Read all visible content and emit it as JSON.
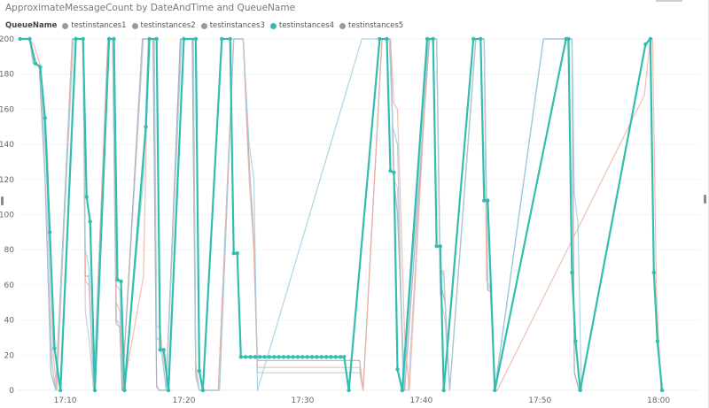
{
  "chart_data": {
    "type": "line",
    "title": "ApproximateMessageCount by DateAndTime and QueueName",
    "xlabel": "",
    "ylabel": "",
    "legend_title": "QueueName",
    "legend_position": "top-left",
    "grid": true,
    "ylim": [
      0,
      200
    ],
    "y_ticks": [
      "0",
      "20",
      "40",
      "60",
      "80",
      "100",
      "120",
      "140",
      "160",
      "180",
      "200"
    ],
    "x_range_minutes": [
      1026,
      1083.5
    ],
    "x_ticks": [
      {
        "label": "17:10",
        "minute": 1030
      },
      {
        "label": "17:20",
        "minute": 1040
      },
      {
        "label": "17:30",
        "minute": 1050
      },
      {
        "label": "17:40",
        "minute": 1060
      },
      {
        "label": "17:50",
        "minute": 1070
      },
      {
        "label": "18:00",
        "minute": 1080
      }
    ],
    "series": [
      {
        "name": "testinstances1",
        "color": "#c7c2dc",
        "points": [
          [
            1026.2,
            200
          ],
          [
            1027.0,
            200
          ],
          [
            1027.4,
            186
          ],
          [
            1027.9,
            185
          ],
          [
            1028.4,
            130
          ],
          [
            1028.9,
            15
          ],
          [
            1029.2,
            0
          ],
          [
            1030.6,
            200
          ],
          [
            1031.5,
            200
          ],
          [
            1031.7,
            45
          ],
          [
            1032.0,
            30
          ],
          [
            1032.4,
            0
          ],
          [
            1033.6,
            200
          ],
          [
            1034.0,
            200
          ],
          [
            1034.3,
            40
          ],
          [
            1034.6,
            38
          ],
          [
            1034.8,
            0
          ],
          [
            1036.6,
            200
          ],
          [
            1037.4,
            200
          ],
          [
            1037.7,
            3
          ],
          [
            1037.9,
            0
          ],
          [
            1038.5,
            0
          ],
          [
            1039.7,
            200
          ],
          [
            1040.7,
            200
          ],
          [
            1041.0,
            10
          ],
          [
            1041.3,
            0
          ],
          [
            1042.7,
            0
          ],
          [
            1043.0,
            0
          ],
          [
            1044.2,
            200
          ],
          [
            1045.0,
            200
          ],
          [
            1045.5,
            120
          ],
          [
            1045.9,
            80
          ],
          [
            1046.2,
            10
          ],
          [
            1054.8,
            10
          ],
          [
            1055.1,
            0
          ],
          [
            1056.7,
            200
          ],
          [
            1057.4,
            200
          ],
          [
            1057.7,
            120
          ],
          [
            1058.0,
            115
          ],
          [
            1058.5,
            0
          ],
          [
            1058.9,
            0
          ],
          [
            1060.6,
            200
          ],
          [
            1061.3,
            200
          ],
          [
            1061.6,
            55
          ],
          [
            1062.0,
            40
          ],
          [
            1062.4,
            0
          ],
          [
            1064.6,
            200
          ],
          [
            1065.3,
            200
          ],
          [
            1065.6,
            58
          ],
          [
            1065.9,
            58
          ],
          [
            1066.2,
            0
          ],
          [
            1070.3,
            200
          ],
          [
            1072.7,
            200
          ],
          [
            1072.9,
            10
          ],
          [
            1073.3,
            0
          ]
        ]
      },
      {
        "name": "testinstances2",
        "color": "#a7a7b5",
        "points": [
          [
            1026.2,
            200
          ],
          [
            1027.0,
            200
          ],
          [
            1027.3,
            186
          ],
          [
            1027.8,
            185
          ],
          [
            1028.3,
            120
          ],
          [
            1028.8,
            10
          ],
          [
            1029.2,
            0
          ],
          [
            1030.6,
            200
          ],
          [
            1031.5,
            200
          ],
          [
            1031.7,
            65
          ],
          [
            1032.0,
            65
          ],
          [
            1032.4,
            0
          ],
          [
            1033.6,
            200
          ],
          [
            1034.0,
            200
          ],
          [
            1034.3,
            38
          ],
          [
            1034.6,
            36
          ],
          [
            1034.8,
            0
          ],
          [
            1036.5,
            200
          ],
          [
            1037.4,
            200
          ],
          [
            1037.7,
            2
          ],
          [
            1037.9,
            0
          ],
          [
            1038.5,
            0
          ],
          [
            1039.7,
            200
          ],
          [
            1040.7,
            200
          ],
          [
            1041.0,
            8
          ],
          [
            1041.3,
            0
          ],
          [
            1042.9,
            0
          ],
          [
            1044.2,
            200
          ],
          [
            1045.0,
            200
          ],
          [
            1045.5,
            130
          ],
          [
            1045.9,
            85
          ],
          [
            1046.2,
            17
          ],
          [
            1054.8,
            17
          ],
          [
            1055.1,
            0
          ],
          [
            1056.7,
            200
          ],
          [
            1057.4,
            200
          ],
          [
            1057.7,
            120
          ],
          [
            1058.0,
            100
          ],
          [
            1058.6,
            0
          ],
          [
            1060.7,
            200
          ],
          [
            1061.3,
            200
          ],
          [
            1061.6,
            62
          ],
          [
            1062.0,
            50
          ],
          [
            1062.4,
            0
          ],
          [
            1064.6,
            200
          ],
          [
            1065.3,
            200
          ],
          [
            1065.6,
            57
          ],
          [
            1065.9,
            56
          ],
          [
            1066.2,
            0
          ],
          [
            1070.3,
            200
          ],
          [
            1072.7,
            200
          ],
          [
            1072.9,
            10
          ],
          [
            1073.3,
            0
          ]
        ]
      },
      {
        "name": "testinstances3",
        "color": "#f5b2a0",
        "points": [
          [
            1026.2,
            200
          ],
          [
            1027.0,
            200
          ],
          [
            1027.4,
            196
          ],
          [
            1027.9,
            185
          ],
          [
            1028.5,
            135
          ],
          [
            1029.0,
            20
          ],
          [
            1029.3,
            0
          ],
          [
            1030.6,
            200
          ],
          [
            1031.5,
            200
          ],
          [
            1031.7,
            62
          ],
          [
            1032.0,
            60
          ],
          [
            1032.4,
            0
          ],
          [
            1033.6,
            200
          ],
          [
            1034.0,
            200
          ],
          [
            1034.3,
            50
          ],
          [
            1034.6,
            45
          ],
          [
            1034.9,
            0
          ],
          [
            1036.6,
            65
          ],
          [
            1037.0,
            200
          ],
          [
            1037.5,
            200
          ],
          [
            1037.7,
            37
          ],
          [
            1038.0,
            35
          ],
          [
            1038.5,
            0
          ],
          [
            1039.8,
            200
          ],
          [
            1040.8,
            200
          ],
          [
            1041.0,
            8
          ],
          [
            1041.3,
            0
          ],
          [
            1042.9,
            0
          ],
          [
            1044.2,
            200
          ],
          [
            1045.0,
            200
          ],
          [
            1045.4,
            135
          ],
          [
            1045.8,
            100
          ],
          [
            1046.2,
            13
          ],
          [
            1054.8,
            13
          ],
          [
            1055.1,
            0
          ],
          [
            1056.7,
            200
          ],
          [
            1057.4,
            200
          ],
          [
            1057.7,
            163
          ],
          [
            1058.0,
            160
          ],
          [
            1058.6,
            30
          ],
          [
            1059.0,
            0
          ],
          [
            1060.6,
            200
          ],
          [
            1061.3,
            200
          ],
          [
            1061.6,
            68
          ],
          [
            1061.9,
            68
          ],
          [
            1062.4,
            0
          ],
          [
            1064.6,
            200
          ],
          [
            1065.3,
            200
          ],
          [
            1065.5,
            62
          ],
          [
            1065.8,
            60
          ],
          [
            1066.2,
            0
          ],
          [
            1066.4,
            0
          ],
          [
            1078.8,
            168
          ],
          [
            1079.3,
            200
          ],
          [
            1079.5,
            200
          ],
          [
            1079.8,
            60
          ],
          [
            1080.2,
            0
          ]
        ]
      },
      {
        "name": "testinstances4",
        "color": "#33bdae",
        "points": [
          [
            1026.2,
            200
          ],
          [
            1027.0,
            200
          ],
          [
            1027.5,
            186
          ],
          [
            1027.9,
            184
          ],
          [
            1028.3,
            155
          ],
          [
            1028.7,
            90
          ],
          [
            1029.1,
            24
          ],
          [
            1029.6,
            0
          ],
          [
            1030.9,
            200
          ],
          [
            1031.5,
            200
          ],
          [
            1031.8,
            110
          ],
          [
            1032.1,
            96
          ],
          [
            1032.5,
            0
          ],
          [
            1033.7,
            200
          ],
          [
            1034.1,
            200
          ],
          [
            1034.4,
            63
          ],
          [
            1034.7,
            62
          ],
          [
            1035.0,
            0
          ],
          [
            1036.8,
            150
          ],
          [
            1037.1,
            200
          ],
          [
            1037.7,
            200
          ],
          [
            1038.0,
            23
          ],
          [
            1038.3,
            23
          ],
          [
            1038.7,
            0
          ],
          [
            1040.0,
            200
          ],
          [
            1041.0,
            200
          ],
          [
            1041.3,
            11
          ],
          [
            1041.6,
            0
          ],
          [
            1043.2,
            200
          ],
          [
            1043.9,
            200
          ],
          [
            1044.2,
            78
          ],
          [
            1044.5,
            78
          ],
          [
            1044.8,
            19
          ],
          [
            1045.2,
            19
          ],
          [
            1045.6,
            19
          ],
          [
            1046.0,
            19
          ],
          [
            1046.4,
            19
          ],
          [
            1046.8,
            19
          ],
          [
            1047.2,
            19
          ],
          [
            1047.6,
            19
          ],
          [
            1048.0,
            19
          ],
          [
            1048.4,
            19
          ],
          [
            1048.8,
            19
          ],
          [
            1049.2,
            19
          ],
          [
            1049.6,
            19
          ],
          [
            1050.0,
            19
          ],
          [
            1050.4,
            19
          ],
          [
            1050.8,
            19
          ],
          [
            1051.2,
            19
          ],
          [
            1051.6,
            19
          ],
          [
            1052.0,
            19
          ],
          [
            1052.4,
            19
          ],
          [
            1052.8,
            19
          ],
          [
            1053.2,
            19
          ],
          [
            1053.5,
            19
          ],
          [
            1053.9,
            0
          ],
          [
            1056.5,
            200
          ],
          [
            1057.1,
            200
          ],
          [
            1057.4,
            125
          ],
          [
            1057.7,
            124
          ],
          [
            1058.0,
            12
          ],
          [
            1058.4,
            0
          ],
          [
            1060.5,
            200
          ],
          [
            1061.0,
            200
          ],
          [
            1061.3,
            82
          ],
          [
            1061.6,
            82
          ],
          [
            1061.9,
            0
          ],
          [
            1064.4,
            200
          ],
          [
            1065.0,
            200
          ],
          [
            1065.3,
            108
          ],
          [
            1065.6,
            108
          ],
          [
            1066.2,
            0
          ],
          [
            1072.2,
            200
          ],
          [
            1072.4,
            200
          ],
          [
            1072.7,
            67
          ],
          [
            1073.0,
            28
          ],
          [
            1073.4,
            0
          ],
          [
            1078.9,
            197
          ],
          [
            1079.3,
            200
          ],
          [
            1079.6,
            67
          ],
          [
            1079.9,
            28
          ],
          [
            1080.3,
            0
          ]
        ]
      },
      {
        "name": "testinstances5",
        "color": "#9bcfe0",
        "points": [
          [
            1026.2,
            200
          ],
          [
            1027.0,
            200
          ],
          [
            1027.4,
            186
          ],
          [
            1027.9,
            185
          ],
          [
            1028.3,
            125
          ],
          [
            1028.8,
            20
          ],
          [
            1029.2,
            0
          ],
          [
            1030.7,
            200
          ],
          [
            1031.5,
            200
          ],
          [
            1031.7,
            80
          ],
          [
            1032.0,
            70
          ],
          [
            1032.4,
            0
          ],
          [
            1033.7,
            200
          ],
          [
            1034.0,
            200
          ],
          [
            1034.3,
            60
          ],
          [
            1034.6,
            57
          ],
          [
            1034.9,
            0
          ],
          [
            1036.6,
            120
          ],
          [
            1037.0,
            200
          ],
          [
            1037.5,
            200
          ],
          [
            1037.7,
            30
          ],
          [
            1038.0,
            28
          ],
          [
            1038.5,
            0
          ],
          [
            1039.8,
            200
          ],
          [
            1040.8,
            200
          ],
          [
            1041.0,
            15
          ],
          [
            1041.3,
            0
          ],
          [
            1043.0,
            0
          ],
          [
            1044.2,
            200
          ],
          [
            1045.0,
            200
          ],
          [
            1045.5,
            140
          ],
          [
            1045.9,
            120
          ],
          [
            1046.2,
            0
          ],
          [
            1055.0,
            200
          ],
          [
            1055.7,
            200
          ],
          [
            1056.5,
            200
          ],
          [
            1057.3,
            200
          ],
          [
            1057.6,
            150
          ],
          [
            1058.0,
            140
          ],
          [
            1058.5,
            0
          ],
          [
            1060.6,
            200
          ],
          [
            1061.3,
            200
          ],
          [
            1061.6,
            70
          ],
          [
            1061.9,
            65
          ],
          [
            1062.4,
            0
          ],
          [
            1064.6,
            200
          ],
          [
            1065.3,
            200
          ],
          [
            1065.6,
            60
          ],
          [
            1065.9,
            58
          ],
          [
            1066.2,
            0
          ],
          [
            1070.3,
            200
          ],
          [
            1072.7,
            200
          ],
          [
            1072.9,
            112
          ],
          [
            1073.2,
            95
          ],
          [
            1073.5,
            0
          ]
        ]
      }
    ]
  }
}
